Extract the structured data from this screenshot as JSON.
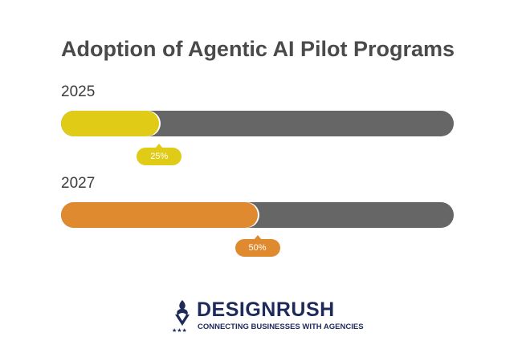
{
  "chart_data": {
    "type": "bar",
    "orientation": "horizontal",
    "title": "Adoption of Agentic AI Pilot Programs",
    "categories": [
      "2025",
      "2027"
    ],
    "values": [
      25,
      50
    ],
    "value_labels": [
      "25%",
      "50%"
    ],
    "xlim": [
      0,
      100
    ],
    "colors": [
      "#e0cb16",
      "#e08a30"
    ],
    "track_color": "#666666",
    "grid": false,
    "legend": "none"
  },
  "branding": {
    "name": "DESIGNRUSH",
    "tagline": "CONNECTING BUSINESSES WITH AGENCIES",
    "color": "#1e2a5a",
    "icon": "designrush-logo-icon"
  }
}
